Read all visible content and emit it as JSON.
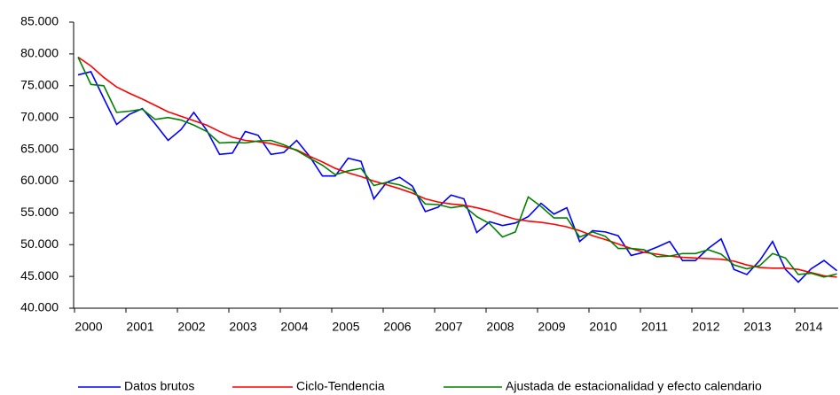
{
  "chart_data": {
    "type": "line",
    "categories": [
      "2000",
      null,
      null,
      null,
      "2001",
      null,
      null,
      null,
      "2002",
      null,
      null,
      null,
      "2003",
      null,
      null,
      null,
      "2004",
      null,
      null,
      null,
      "2005",
      null,
      null,
      null,
      "2006",
      null,
      null,
      null,
      "2007",
      null,
      null,
      null,
      "2008",
      null,
      null,
      null,
      "2009",
      null,
      null,
      null,
      "2010",
      null,
      null,
      null,
      "2011",
      null,
      null,
      null,
      "2012",
      null,
      null,
      null,
      "2013",
      null,
      null,
      null,
      "2014",
      null,
      null,
      null
    ],
    "ylim": [
      40000,
      85000
    ],
    "yticks": [
      {
        "value": 40000,
        "label": "40.000"
      },
      {
        "value": 45000,
        "label": "45.000"
      },
      {
        "value": 50000,
        "label": "50.000"
      },
      {
        "value": 55000,
        "label": "55.000"
      },
      {
        "value": 60000,
        "label": "60.000"
      },
      {
        "value": 65000,
        "label": "65.000"
      },
      {
        "value": 70000,
        "label": "70.000"
      },
      {
        "value": 75000,
        "label": "75.000"
      },
      {
        "value": 80000,
        "label": "80.000"
      },
      {
        "value": 85000,
        "label": "85.000"
      }
    ],
    "series": [
      {
        "name": "Datos brutos",
        "color": "#0000ff",
        "values": [
          76700,
          77200,
          73000,
          68900,
          70500,
          71400,
          69000,
          66400,
          68100,
          70800,
          68000,
          64200,
          64400,
          67800,
          67200,
          64200,
          64500,
          66400,
          63900,
          60800,
          60800,
          63600,
          63100,
          57200,
          59800,
          60600,
          59200,
          55200,
          55900,
          57800,
          57200,
          51900,
          53600,
          53000,
          53400,
          54400,
          56500,
          54800,
          55800,
          50500,
          52200,
          52000,
          51400,
          48300,
          48800,
          49600,
          50500,
          47500,
          47500,
          49400,
          50900,
          46100,
          45300,
          47500,
          50500,
          46100,
          44100,
          46200,
          47500,
          45900
        ]
      },
      {
        "name": "Ciclo-Tendencia",
        "color": "#ff0000",
        "values": [
          79500,
          78100,
          76300,
          74800,
          73800,
          72900,
          71900,
          70900,
          70200,
          69500,
          68800,
          67800,
          66900,
          66400,
          66200,
          65900,
          65400,
          64900,
          63900,
          63000,
          62000,
          61300,
          60700,
          60000,
          59400,
          58800,
          58100,
          57200,
          56700,
          56400,
          56200,
          55800,
          55300,
          54600,
          54000,
          53700,
          53500,
          53200,
          52800,
          52200,
          51400,
          50800,
          50100,
          49400,
          48800,
          48500,
          48200,
          48000,
          47900,
          47800,
          47700,
          47400,
          46800,
          46400,
          46300,
          46300,
          46100,
          45600,
          45100,
          44900
        ]
      },
      {
        "name": "Ajustada de estacionalidad y efecto calendario",
        "color": "#008000",
        "values": [
          79500,
          75200,
          75000,
          70800,
          71000,
          71300,
          69700,
          70000,
          69600,
          68800,
          67800,
          66000,
          66100,
          66000,
          66300,
          66400,
          65700,
          64800,
          63600,
          62500,
          61000,
          61600,
          62000,
          59300,
          59800,
          59400,
          58600,
          56400,
          56300,
          55800,
          56100,
          54400,
          53300,
          51200,
          52000,
          57500,
          56000,
          54200,
          54200,
          51200,
          52000,
          51300,
          49400,
          49400,
          49200,
          48100,
          48200,
          48600,
          48600,
          49200,
          48500,
          46800,
          46200,
          46700,
          48600,
          47900,
          45300,
          45500,
          44900,
          45400
        ]
      }
    ]
  }
}
